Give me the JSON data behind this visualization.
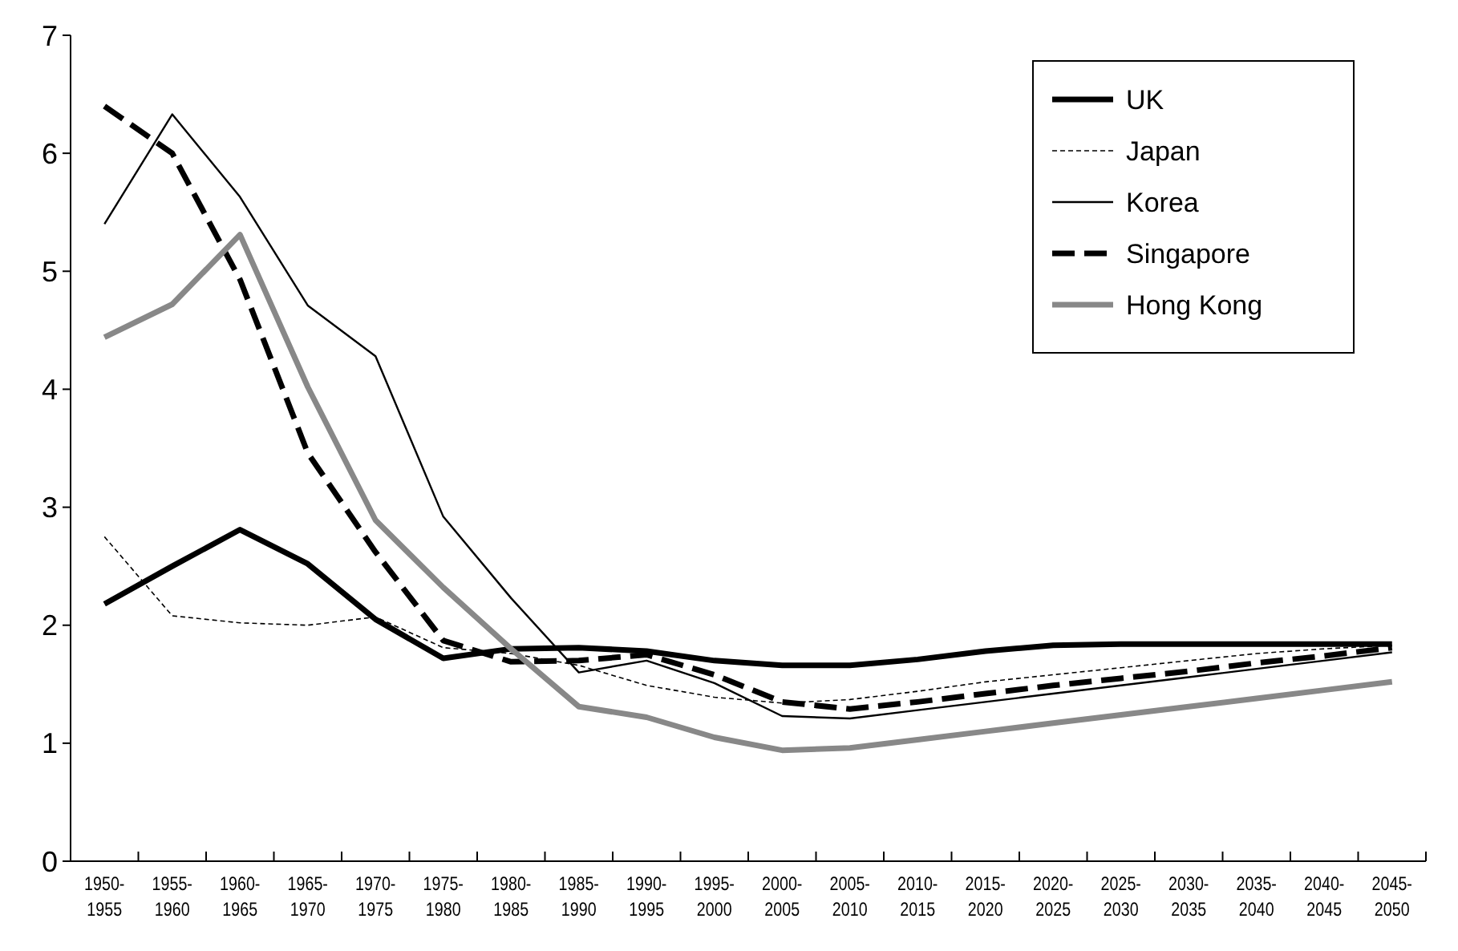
{
  "chart_data": {
    "type": "line",
    "categories": [
      "1950-1955",
      "1955-1960",
      "1960-1965",
      "1965-1970",
      "1970-1975",
      "1975-1980",
      "1980-1985",
      "1985-1990",
      "1990-1995",
      "1995-2000",
      "2000-2005",
      "2005-2010",
      "2010-2015",
      "2015-2020",
      "2020-2025",
      "2025-2030",
      "2030-2035",
      "2035-2040",
      "2040-2045",
      "2045-2050"
    ],
    "series": [
      {
        "name": "UK",
        "color": "#000000",
        "line_style": "solid",
        "values": [
          2.18,
          2.5,
          2.81,
          2.52,
          2.05,
          1.72,
          1.8,
          1.81,
          1.78,
          1.7,
          1.66,
          1.66,
          1.71,
          1.78,
          1.83,
          1.84,
          1.84,
          1.84,
          1.84,
          1.84
        ]
      },
      {
        "name": "Japan",
        "color": "#000000",
        "line_style": "dotted",
        "values": [
          2.75,
          2.08,
          2.02,
          2.0,
          2.07,
          1.81,
          1.76,
          1.66,
          1.49,
          1.39,
          1.34,
          1.37,
          1.44,
          1.52,
          1.58,
          1.64,
          1.7,
          1.76,
          1.8,
          1.83
        ]
      },
      {
        "name": "Korea",
        "color": "#000000",
        "line_style": "solid",
        "values": [
          5.4,
          6.33,
          5.63,
          4.71,
          4.28,
          2.92,
          2.23,
          1.6,
          1.7,
          1.51,
          1.23,
          1.21,
          1.28,
          1.35,
          1.42,
          1.49,
          1.56,
          1.63,
          1.7,
          1.77
        ]
      },
      {
        "name": "Singapore",
        "color": "#000000",
        "line_style": "dashed",
        "values": [
          6.4,
          6.0,
          4.93,
          3.46,
          2.62,
          1.87,
          1.69,
          1.7,
          1.75,
          1.58,
          1.35,
          1.29,
          1.35,
          1.42,
          1.49,
          1.55,
          1.61,
          1.68,
          1.74,
          1.81
        ]
      },
      {
        "name": "Hong Kong",
        "color": "#888888",
        "line_style": "solid",
        "values": [
          4.44,
          4.72,
          5.31,
          4.02,
          2.89,
          2.32,
          1.8,
          1.31,
          1.22,
          1.05,
          0.94,
          0.96,
          1.03,
          1.1,
          1.17,
          1.24,
          1.31,
          1.38,
          1.45,
          1.52
        ]
      }
    ],
    "ylim": [
      0,
      7
    ],
    "yticks": [
      0,
      1,
      2,
      3,
      4,
      5,
      6,
      7
    ],
    "grid": false,
    "legend": "top right"
  }
}
